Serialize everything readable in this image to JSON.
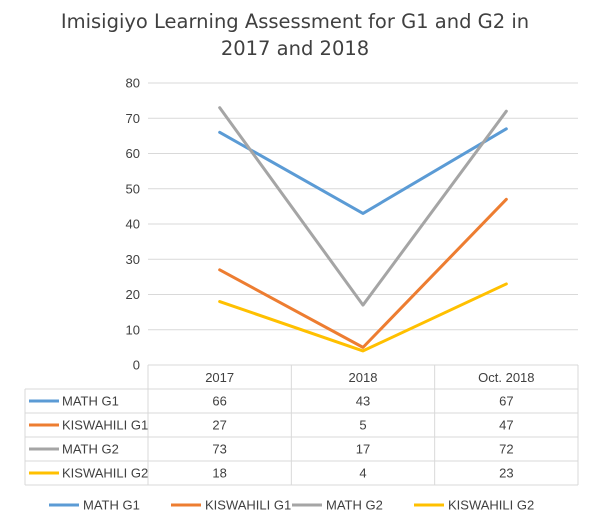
{
  "chart_data": {
    "type": "line",
    "title_line1": "Imisigiyo Learning Assessment for G1 and G2 in",
    "title_line2": "2017 and 2018",
    "categories": [
      "2017",
      "2018",
      "Oct. 2018"
    ],
    "ylim": [
      0,
      80
    ],
    "yticks": [
      "0",
      "10",
      "20",
      "30",
      "40",
      "50",
      "60",
      "70",
      "80"
    ],
    "grid": true,
    "data_table": true,
    "legend_position": "bottom",
    "series": [
      {
        "name": "MATH G1",
        "values": [
          66,
          43,
          67
        ],
        "color": "#5B9BD5"
      },
      {
        "name": "KISWAHILI G1",
        "values": [
          27,
          5,
          47
        ],
        "color": "#ED7D31"
      },
      {
        "name": "MATH G2",
        "values": [
          73,
          17,
          72
        ],
        "color": "#A5A5A5"
      },
      {
        "name": "KISWAHILI G2",
        "values": [
          18,
          4,
          23
        ],
        "color": "#FFC000"
      }
    ]
  }
}
